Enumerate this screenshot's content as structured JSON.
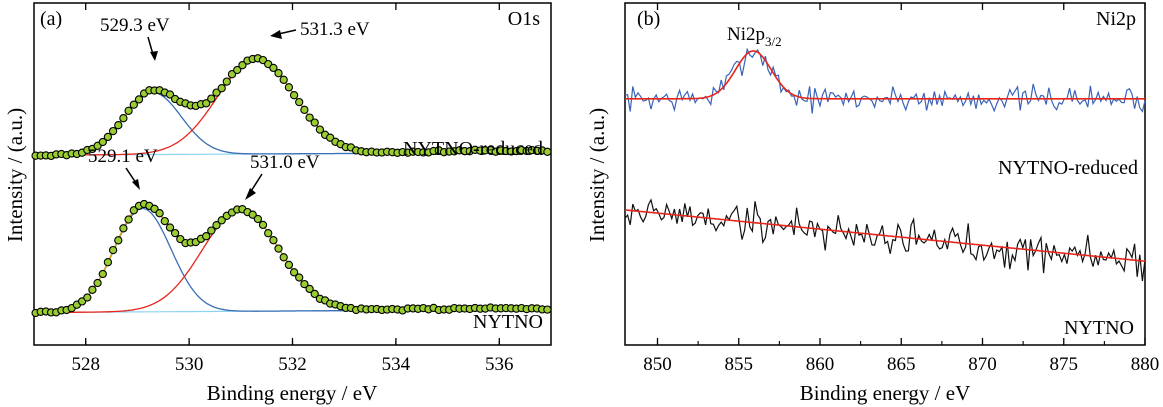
{
  "chart_data": [
    {
      "panel": "(a)",
      "type": "line",
      "title": "O1s",
      "xlabel": "Binding energy / eV",
      "ylabel": "Intensity / (a.u.)",
      "xlim": [
        527,
        537
      ],
      "x_ticks": [
        528,
        530,
        532,
        534,
        536
      ],
      "ylim": [
        0,
        1
      ],
      "grid": false,
      "spectra": [
        {
          "name": "NYTNO-reduced",
          "offset": 0.555,
          "amp": 0.33,
          "baseline": {
            "start": 0.0,
            "end": 0.025
          },
          "tail": {
            "center": 535.6,
            "width": 1.2,
            "height": 0.018
          },
          "components": [
            {
              "center": 529.3,
              "sigma": 0.55,
              "height": 0.55
            },
            {
              "center": 531.3,
              "sigma": 0.75,
              "height": 0.84
            }
          ],
          "annotations": [
            {
              "label": "529.3 eV",
              "x": 529.3
            },
            {
              "label": "531.3 eV",
              "x": 531.3
            }
          ]
        },
        {
          "name": "NYTNO",
          "offset": 0.095,
          "amp": 0.36,
          "baseline": {
            "start": 0.0,
            "end": 0.025
          },
          "tail": {
            "center": 535.6,
            "width": 1.2,
            "height": 0.012
          },
          "components": [
            {
              "center": 529.1,
              "sigma": 0.55,
              "height": 0.84
            },
            {
              "center": 531.0,
              "sigma": 0.75,
              "height": 0.82
            }
          ],
          "annotations": [
            {
              "label": "529.1 eV",
              "x": 529.1
            },
            {
              "label": "531.0 eV",
              "x": 531.0
            }
          ]
        }
      ],
      "colors": {
        "data_edge": "#000000",
        "data_fill": "#9acd32",
        "fit_sum": "#d4a017",
        "component_1": "#3a6fb5",
        "component_2": "#e8251b",
        "background": "#8fd3f0"
      }
    },
    {
      "panel": "(b)",
      "type": "line",
      "title": "Ni2p",
      "xlabel": "Binding energy / eV",
      "ylabel": "Intensity / (a.u.)",
      "xlim": [
        848,
        880
      ],
      "x_ticks": [
        850,
        855,
        860,
        865,
        870,
        875,
        880
      ],
      "ylim": [
        0,
        1
      ],
      "grid": false,
      "peak_label": {
        "main": "Ni2p",
        "sub": "3/2"
      },
      "spectra": [
        {
          "name": "NYTNO-reduced",
          "color": "#3a63b8",
          "fit_color": "#e8251b",
          "fit": {
            "baseline": 0.72,
            "peak_center": 855.9,
            "peak_sigma": 1.1,
            "peak_height": 0.14
          },
          "noise_amplitude": 0.055,
          "seed": 7
        },
        {
          "name": "NYTNO",
          "color": "#111111",
          "fit_color": "#e8251b",
          "fit": {
            "baseline_start": 0.395,
            "baseline_end": 0.245
          },
          "noise_amplitude": 0.085,
          "seed": 19
        }
      ]
    }
  ]
}
